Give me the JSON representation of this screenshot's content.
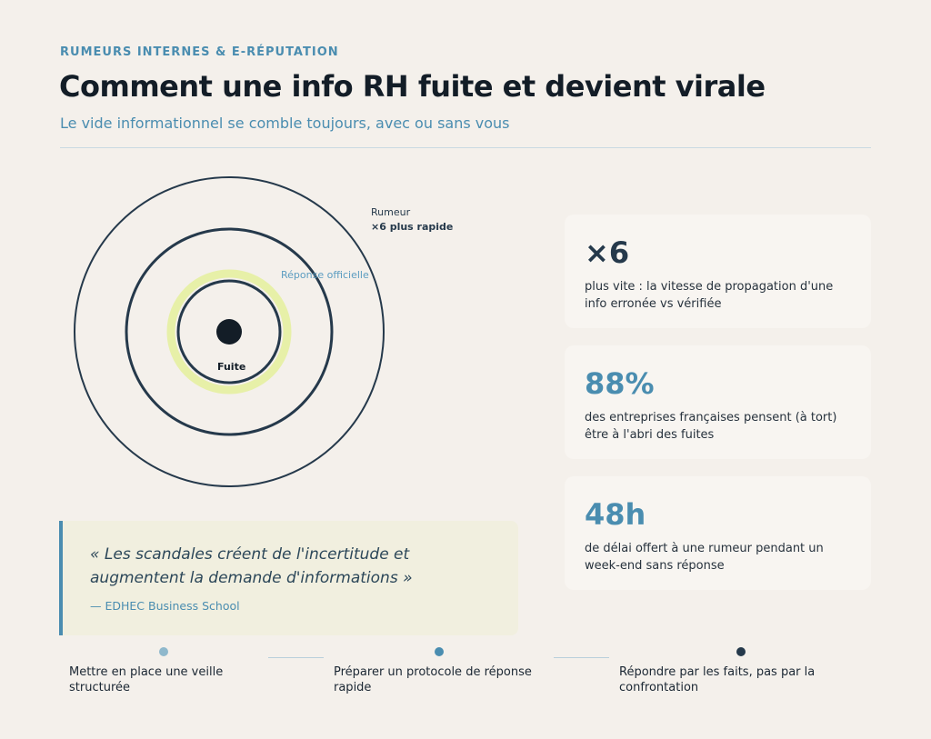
{
  "header": {
    "eyebrow": "RUMEURS INTERNES & E-RÉPUTATION",
    "title": "Comment une info RH fuite et devient virale",
    "subtitle": "Le vide informationnel se comble toujours, avec ou sans vous"
  },
  "diagram": {
    "label_rumeur": "Rumeur",
    "label_rumeur_speed": "×6 plus rapide",
    "label_official": "Réponse officielle",
    "label_leak": "Fuite",
    "colors": {
      "ring": "#25394b",
      "official_glow": "#e7f0a8",
      "core": "#131d27"
    }
  },
  "quote": {
    "text": "« Les scandales créent de l'incertitude et augmentent la demande d'informations »",
    "source": "— EDHEC Business School"
  },
  "stats": [
    {
      "value": "×6",
      "description": "plus vite : la vitesse de propagation d'une info erronée vs vérifiée",
      "color": "#25394b"
    },
    {
      "value": "88%",
      "description": "des entreprises françaises pensent (à tort) être à l'abri des fuites",
      "color": "#4a8db0"
    },
    {
      "value": "48h",
      "description": "de délai offert à une rumeur pendant un week-end sans réponse",
      "color": "#4a8db0"
    }
  ],
  "steps": [
    {
      "label": "Mettre en place une veille structurée",
      "color": "#8fb8cc"
    },
    {
      "label": "Préparer un protocole de réponse rapide",
      "color": "#4a8db0"
    },
    {
      "label": "Répondre par les faits, pas par la confrontation",
      "color": "#25394b"
    }
  ]
}
